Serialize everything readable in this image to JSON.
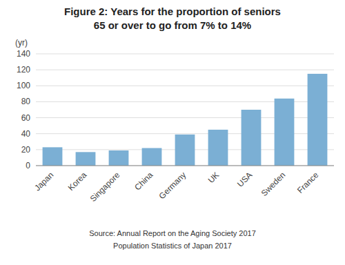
{
  "chart_data": {
    "type": "bar",
    "title": "Figure 2: Years for the proportion of seniors",
    "subtitle": "65 or over to go from 7% to 14%",
    "ylabel": "(yr)",
    "categories": [
      "Japan",
      "Korea",
      "Singapore",
      "China",
      "Germany",
      "UK",
      "USA",
      "Sweden",
      "France"
    ],
    "values": [
      23,
      17,
      19,
      22,
      39,
      45,
      70,
      84,
      115
    ],
    "color": "#7bafd4",
    "ylim": [
      0,
      140
    ],
    "yticks": [
      0,
      20,
      40,
      60,
      80,
      100,
      120,
      140
    ],
    "grid": true,
    "annotations": [
      "Source: Annual Report on the Aging Society 2017",
      "Population Statistics of Japan 2017"
    ]
  }
}
